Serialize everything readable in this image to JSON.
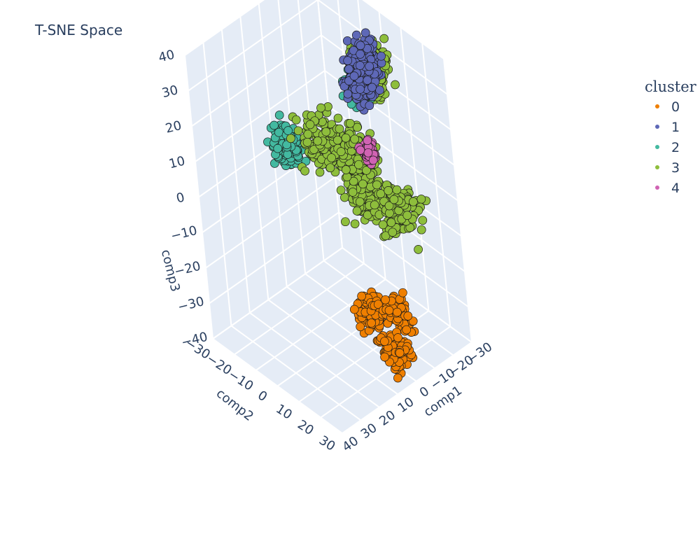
{
  "chart_data": {
    "type": "scatter3d",
    "title": "T-SNE Space",
    "axes": {
      "x": {
        "label": "comp1",
        "range": [
          -30,
          40
        ],
        "ticks": [
          -30,
          -20,
          -10,
          0,
          10,
          20,
          30,
          40
        ]
      },
      "y": {
        "label": "comp2",
        "range": [
          -30,
          30
        ],
        "ticks": [
          -30,
          -20,
          -10,
          0,
          10,
          20,
          30
        ]
      },
      "z": {
        "label": "comp3",
        "range": [
          -40,
          40
        ],
        "ticks": [
          -40,
          -30,
          -20,
          -10,
          0,
          10,
          20,
          30,
          40
        ]
      }
    },
    "grid": true,
    "legend": {
      "title": "cluster",
      "placement": "top-right",
      "entries": [
        {
          "label": "0",
          "color": "#ef7f00"
        },
        {
          "label": "1",
          "color": "#5e68b7"
        },
        {
          "label": "2",
          "color": "#43b9a0"
        },
        {
          "label": "3",
          "color": "#8ebe3c"
        },
        {
          "label": "4",
          "color": "#d063b3"
        }
      ]
    },
    "clusters": [
      {
        "cluster": "0",
        "color": "#ef7f00",
        "centers": [
          [
            5,
            28,
            -20
          ],
          [
            18,
            28,
            -15
          ],
          [
            5,
            25,
            -32
          ]
        ],
        "spread": 4,
        "count": 260
      },
      {
        "cluster": "1",
        "color": "#5e68b7",
        "centers": [
          [
            -28,
            -10,
            17
          ],
          [
            -22,
            -2,
            28
          ]
        ],
        "spread": 4.5,
        "count": 300
      },
      {
        "cluster": "2",
        "color": "#43b9a0",
        "centers": [
          [
            -2,
            14,
            36
          ],
          [
            18,
            -5,
            18
          ]
        ],
        "spread": 4,
        "count": 300
      },
      {
        "cluster": "3",
        "color": "#8ebe3c",
        "centers": [
          [
            -10,
            12,
            36
          ],
          [
            0,
            -5,
            12
          ],
          [
            -22,
            8,
            -10
          ],
          [
            -8,
            5,
            0
          ],
          [
            -10,
            0,
            8
          ]
        ],
        "spread": 6,
        "count": 700
      },
      {
        "cluster": "4",
        "color": "#d063b3",
        "centers": [
          [
            -30,
            -12,
            -5
          ]
        ],
        "spread": 2.2,
        "count": 60
      }
    ]
  }
}
